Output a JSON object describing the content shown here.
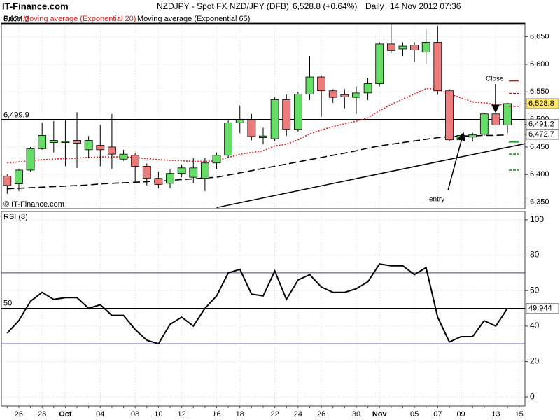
{
  "header": {
    "site": "IT-Finance.com",
    "instrument": "NZDJPY - Spot FX NZD/JPY (DFB)",
    "last": "6,528.8 (+0.64%)",
    "period": "Daily",
    "timestamp": "14 Nov 2012 07:36"
  },
  "chart_data": [
    {
      "type": "candlestick",
      "name": "Price",
      "watermark": "© IT-Finance.com",
      "up_color": "#66dd66",
      "down_color": "#ec7c7c",
      "open": [
        6397,
        6383,
        6408,
        6447,
        6458,
        6458,
        6462,
        6445,
        6453,
        6450,
        6428,
        6435,
        6415,
        6393,
        6384,
        6402,
        6395,
        6393,
        6421,
        6435,
        6494,
        6500,
        6467,
        6465,
        6536,
        6482,
        6546,
        6577,
        6552,
        6545,
        6540,
        6548,
        6565,
        6637,
        6628,
        6635,
        6622,
        6640,
        6552,
        6463,
        6468,
        6473,
        6510,
        6490,
        null
      ],
      "high": [
        6400,
        6410,
        6450,
        6494,
        6497,
        6498,
        6513,
        6470,
        6490,
        6510,
        6445,
        6440,
        6420,
        6405,
        6410,
        6418,
        6430,
        6430,
        6440,
        6498,
        6525,
        6510,
        6485,
        6540,
        6545,
        6550,
        6615,
        6580,
        6555,
        6555,
        6560,
        6575,
        6640,
        6675,
        6640,
        6640,
        6665,
        6670,
        6555,
        6480,
        6476,
        6512,
        6515,
        6530,
        null
      ],
      "low": [
        6365,
        6370,
        6405,
        6445,
        6440,
        6415,
        6412,
        6430,
        6415,
        6410,
        6425,
        6385,
        6380,
        6375,
        6375,
        6395,
        6385,
        6370,
        6410,
        6430,
        6475,
        6462,
        6455,
        6460,
        6470,
        6478,
        6535,
        6505,
        6530,
        6520,
        6510,
        6535,
        6560,
        6620,
        6615,
        6605,
        6600,
        6545,
        6460,
        6455,
        6460,
        6470,
        6470,
        6475,
        null
      ],
      "close": [
        6380,
        6408,
        6447,
        6471,
        6462,
        6460,
        6457,
        6462,
        6445,
        6437,
        6437,
        6415,
        6393,
        6382,
        6402,
        6412,
        6412,
        6421,
        6435,
        6494,
        6500,
        6469,
        6470,
        6536,
        6482,
        6546,
        6577,
        6552,
        6540,
        6541,
        6548,
        6565,
        6637,
        6625,
        6633,
        6626,
        6640,
        6552,
        6463,
        6471,
        6472,
        6510,
        6490,
        6528.8,
        null
      ],
      "series": [
        {
          "name": "Moving average (Exponential 20)",
          "color": "#e02020",
          "style": "dotted",
          "values": [
            6421,
            6423,
            6425,
            6427,
            6428,
            6429,
            6430,
            6431,
            6432,
            6432,
            6432,
            6431,
            6429,
            6427,
            6426,
            6425,
            6424,
            6424,
            6425,
            6431,
            6437,
            6440,
            6443,
            6452,
            6455,
            6463,
            6474,
            6481,
            6487,
            6492,
            6497,
            6503,
            6516,
            6527,
            6537,
            6546,
            6556,
            6555,
            6546,
            6539,
            6532,
            6530,
            6527,
            6527,
            null
          ]
        },
        {
          "name": "Moving average (Exponential 65)",
          "color": "#000000",
          "style": "dashed",
          "values": [
            6374,
            6375,
            6376,
            6377,
            6378,
            6379,
            6380,
            6381,
            6383,
            6384,
            6385,
            6386,
            6387,
            6388,
            6389,
            6391,
            6392,
            6394,
            6395,
            6399,
            6403,
            6407,
            6411,
            6415,
            6419,
            6423,
            6427,
            6431,
            6435,
            6439,
            6443,
            6448,
            6452,
            6455,
            6458,
            6461,
            6464,
            6467,
            6469,
            6470,
            6470,
            6471,
            6471,
            6472,
            null
          ]
        }
      ],
      "ylim": [
        6338,
        6675
      ],
      "yticks": [
        {
          "value": 6350,
          "label": "6,350"
        },
        {
          "value": 6400,
          "label": "6,400"
        },
        {
          "value": 6450,
          "label": "6,450"
        },
        {
          "value": 6500,
          "label": "6,500"
        },
        {
          "value": 6550,
          "label": "6,550"
        },
        {
          "value": 6600,
          "label": "6,600"
        },
        {
          "value": 6650,
          "label": "6,650"
        }
      ],
      "hlines": [
        {
          "value": 6674.2,
          "label": "6,674.2"
        },
        {
          "value": 6499.9,
          "label": "6,499.9"
        }
      ],
      "price_labels": [
        {
          "value": 6528.8,
          "label": "6,528.8",
          "color": "#ffe66b"
        },
        {
          "value": 6491.2,
          "label": "6,491.2",
          "color": "#ffffff"
        },
        {
          "value": 6472.7,
          "label": "6,472.7",
          "color": "#ffffff"
        }
      ],
      "target_levels": [
        {
          "value": 6570,
          "color": "#e00000"
        },
        {
          "value": 6547,
          "color": "#e00000"
        },
        {
          "value": 6524,
          "color": "#e00000"
        },
        {
          "value": 6459,
          "color": "#009900"
        },
        {
          "value": 6437,
          "color": "#009900"
        },
        {
          "value": 6408,
          "color": "#009900"
        }
      ],
      "trendline": {
        "x": [
          18,
          44.5
        ],
        "y": [
          6340,
          6456
        ]
      },
      "annotations": [
        "entry",
        "Close"
      ]
    },
    {
      "type": "line",
      "title": "RSI (8)",
      "categories": [
        null,
        "26",
        null,
        "28",
        null,
        "Oct",
        null,
        null,
        "04",
        null,
        null,
        "08",
        null,
        "10",
        null,
        "12",
        null,
        null,
        "16",
        null,
        "18",
        null,
        null,
        "22",
        null,
        "24",
        null,
        "26",
        null,
        null,
        "30",
        null,
        "Nov",
        null,
        null,
        "05",
        null,
        "07",
        null,
        "09",
        null,
        null,
        "13",
        null,
        "15"
      ],
      "series": [
        {
          "name": "RSI (8)",
          "color": "#000000",
          "values": [
            36,
            43,
            54,
            59,
            55,
            56,
            56,
            50,
            52,
            46,
            46,
            38,
            32,
            30,
            41,
            45,
            40,
            50,
            57,
            70,
            72,
            58,
            57,
            71,
            55,
            66,
            69,
            62,
            59,
            59,
            61,
            65,
            75,
            74,
            74,
            69,
            73,
            45,
            31,
            34,
            34,
            43,
            40,
            49.944,
            null
          ]
        }
      ],
      "value_label": {
        "value": 49.944,
        "label": "49.944"
      },
      "levels": [
        {
          "value": 70,
          "color": "#3a3aa8"
        },
        {
          "value": 30,
          "color": "#3a3aa8"
        }
      ],
      "midline": 50,
      "ylim": [
        -5.1,
        104.7
      ],
      "yticks": [
        0,
        20,
        40,
        60,
        80,
        100
      ]
    }
  ]
}
